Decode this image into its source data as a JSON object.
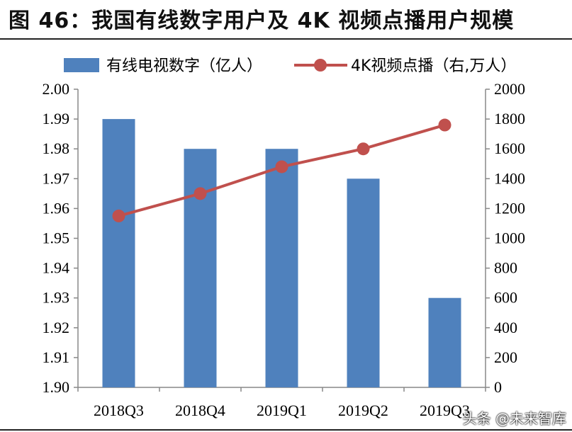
{
  "figure": {
    "title": "图 46：我国有线数字用户及 4K 视频点播用户规模",
    "watermark": "头条 @未来智库"
  },
  "colors": {
    "bar": "#4F81BD",
    "line": "#C0504D",
    "axis": "#888888"
  },
  "chart_data": {
    "type": "bar+line",
    "categories": [
      "2018Q3",
      "2018Q4",
      "2019Q1",
      "2019Q2",
      "2019Q3"
    ],
    "series": [
      {
        "name": "有线电视数字（亿人）",
        "type": "bar",
        "axis": "left",
        "values": [
          1.99,
          1.98,
          1.98,
          1.97,
          1.93
        ]
      },
      {
        "name": "4K视频点播（右,万人）",
        "type": "line",
        "axis": "right",
        "values": [
          1150,
          1300,
          1480,
          1600,
          1760
        ]
      }
    ],
    "left_axis": {
      "ylim": [
        1.9,
        2.0
      ],
      "ticks": [
        "1.90",
        "1.91",
        "1.92",
        "1.93",
        "1.94",
        "1.95",
        "1.96",
        "1.97",
        "1.98",
        "1.99",
        "2.00"
      ]
    },
    "right_axis": {
      "ylim": [
        0,
        2000
      ],
      "ticks": [
        "0",
        "200",
        "400",
        "600",
        "800",
        "1000",
        "1200",
        "1400",
        "1600",
        "1800",
        "2000"
      ]
    },
    "legend": "top",
    "grid": false
  }
}
